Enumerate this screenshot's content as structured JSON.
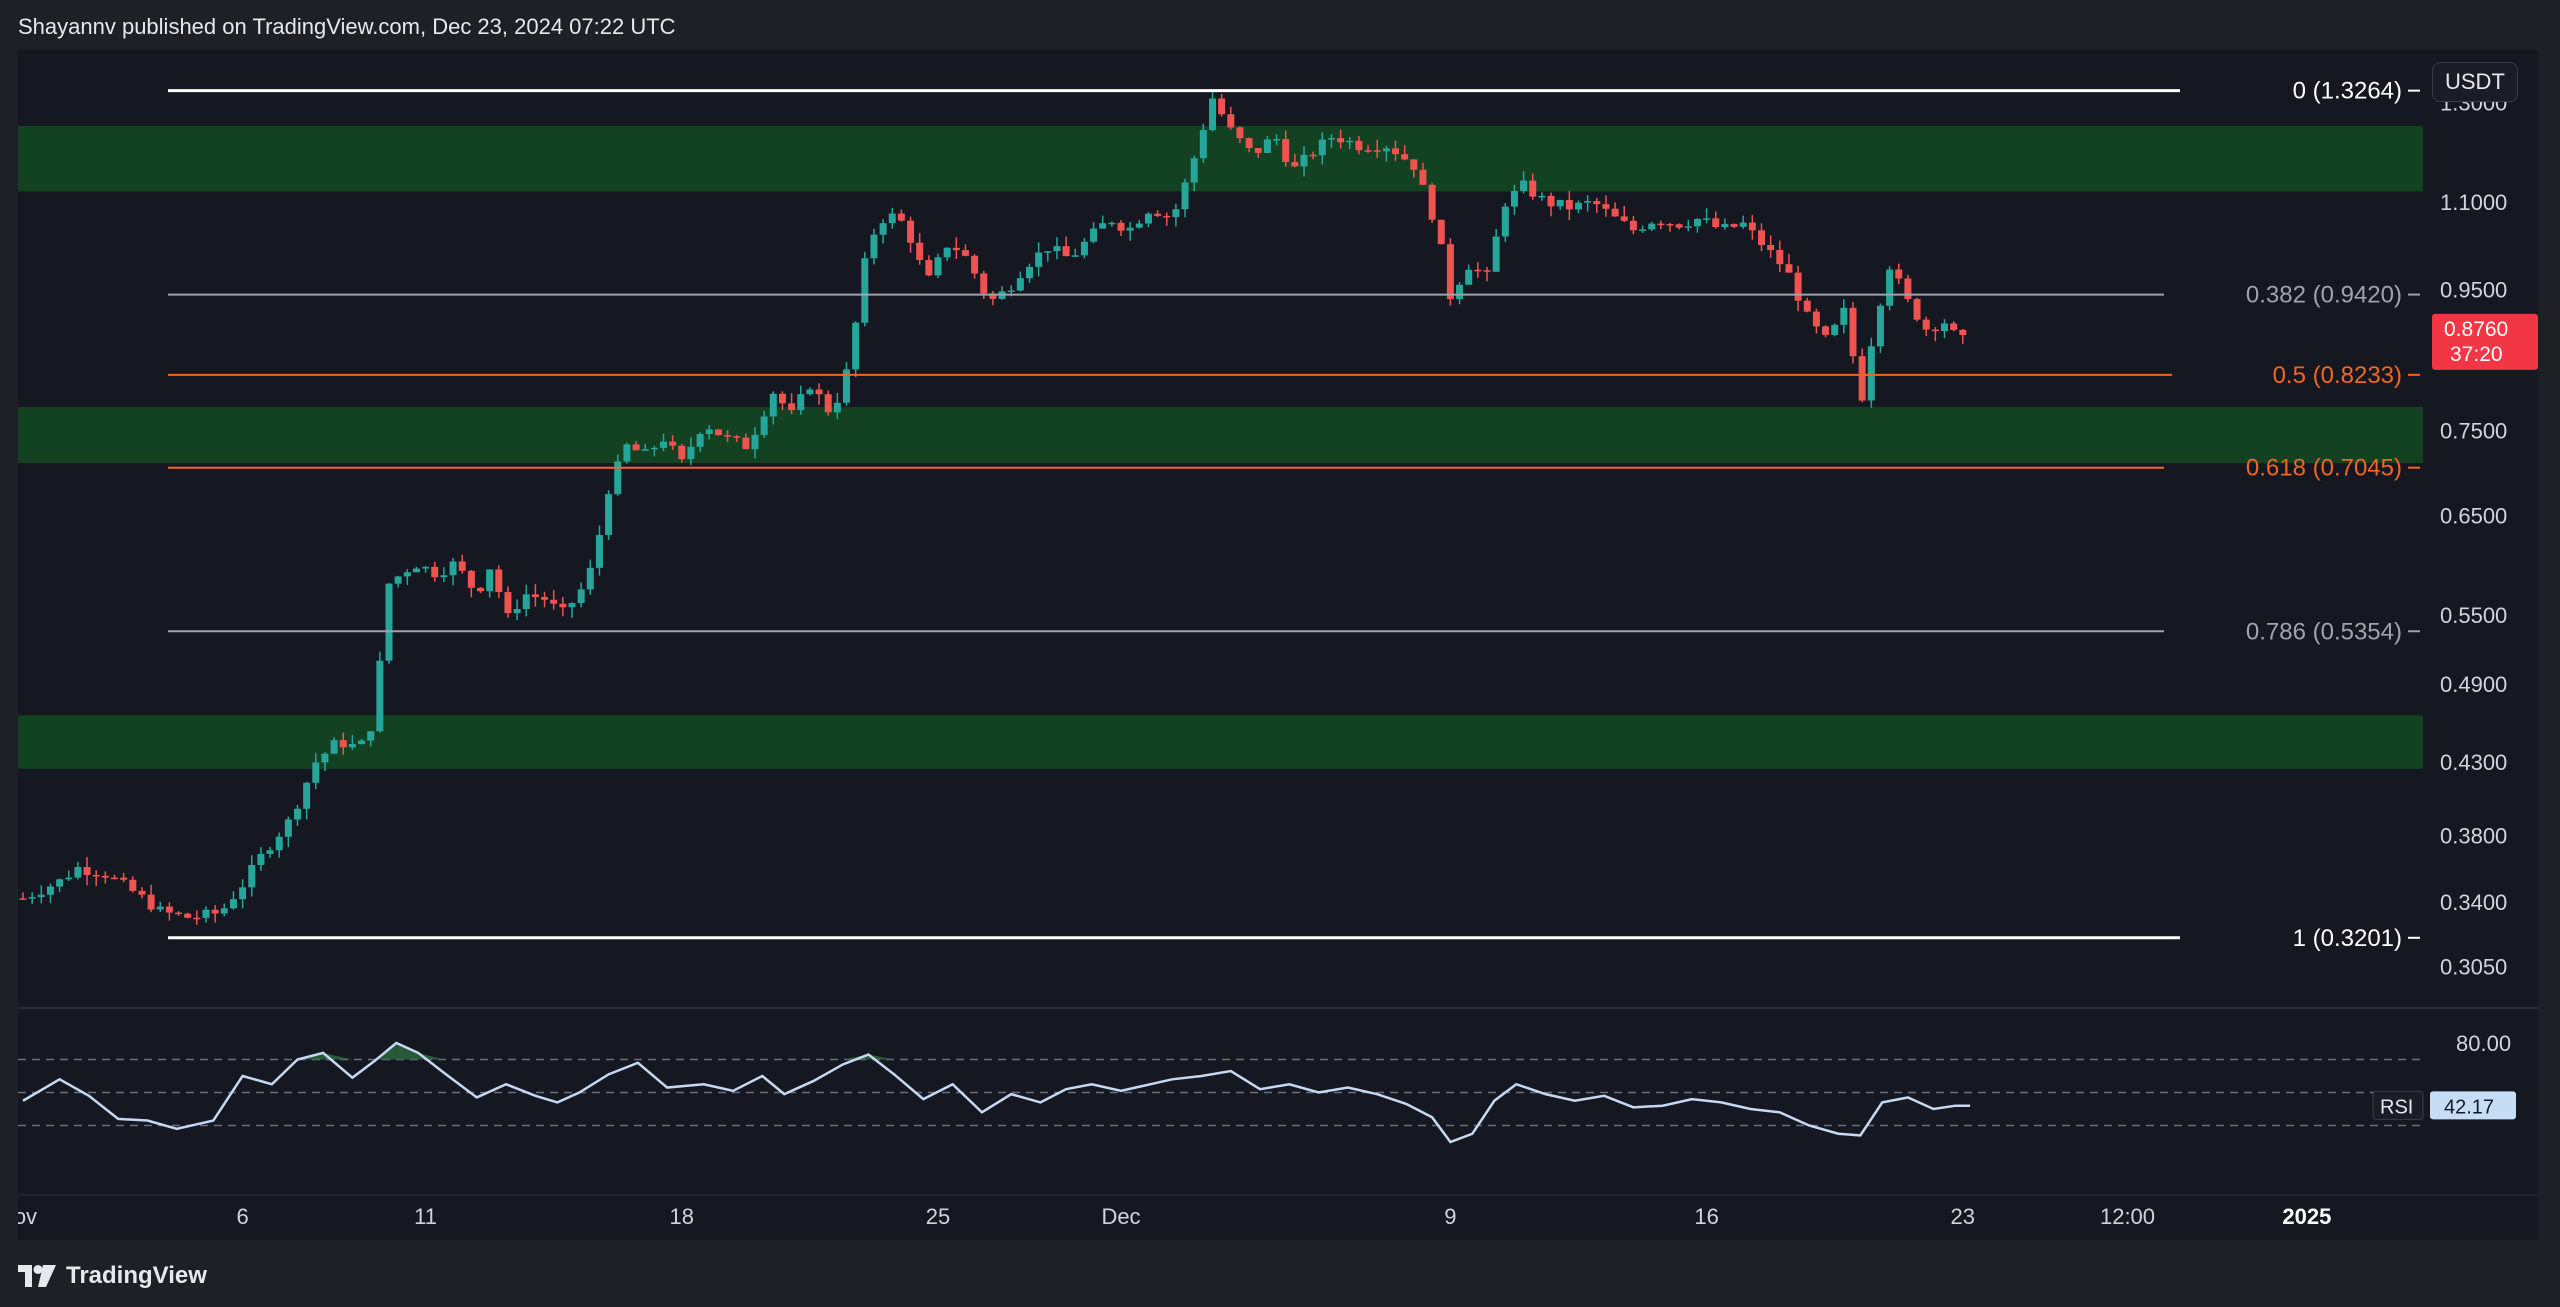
{
  "header": {
    "published_text": "Shayannv published on TradingView.com, Dec 23, 2024 07:22 UTC"
  },
  "footer": {
    "brand": "TradingView"
  },
  "colors": {
    "background": "#151821",
    "zone": "#124222",
    "candle_up": "#26a69a",
    "candle_down": "#ef5350",
    "fib_white": "#ffffff",
    "fib_gray": "#9ea3ad",
    "fib_orange": "#f26522",
    "rsi_line": "#c7d8f2",
    "price_tag": "#f23645"
  },
  "chart_data": {
    "type": "candlestick",
    "quote_unit": "USDT",
    "y_axis": {
      "scale": "log",
      "range": [
        0.285,
        1.42
      ],
      "ticks": [
        "1.3000",
        "1.1000",
        "0.9500",
        "0.7500",
        "0.6500",
        "0.5500",
        "0.4900",
        "0.4300",
        "0.3800",
        "0.3400",
        "0.3050"
      ]
    },
    "x_axis": {
      "labels": [
        {
          "text": "lov",
          "day": 0
        },
        {
          "text": "6",
          "day": 6
        },
        {
          "text": "11",
          "day": 11
        },
        {
          "text": "18",
          "day": 18
        },
        {
          "text": "25",
          "day": 25
        },
        {
          "text": "Dec",
          "day": 30
        },
        {
          "text": "9",
          "day": 39
        },
        {
          "text": "16",
          "day": 46
        },
        {
          "text": "23",
          "day": 53
        },
        {
          "text": "12:00",
          "day": 57.5
        },
        {
          "text": "2025",
          "day": 62.4
        }
      ]
    },
    "current_price": {
      "value": "0.8760",
      "countdown": "37:20"
    },
    "fib_levels": [
      {
        "label": "0 (1.3264)",
        "value": 1.3264,
        "style": "white"
      },
      {
        "label": "0.382 (0.9420)",
        "value": 0.942,
        "style": "gray"
      },
      {
        "label": "0.5 (0.8233)",
        "value": 0.8233,
        "style": "orange"
      },
      {
        "label": "0.618 (0.7045)",
        "value": 0.7045,
        "style": "orange"
      },
      {
        "label": "0.786 (0.5354)",
        "value": 0.5354,
        "style": "gray"
      },
      {
        "label": "1 (0.3201)",
        "value": 0.3201,
        "style": "white"
      }
    ],
    "zones": [
      {
        "top": 1.25,
        "bottom": 1.12
      },
      {
        "top": 0.78,
        "bottom": 0.71
      },
      {
        "top": 0.465,
        "bottom": 0.425
      }
    ],
    "price_path": [
      [
        0.0,
        0.342
      ],
      [
        1.0,
        0.352
      ],
      [
        1.5,
        0.36
      ],
      [
        2.2,
        0.357
      ],
      [
        3.0,
        0.346
      ],
      [
        3.8,
        0.334
      ],
      [
        4.6,
        0.331
      ],
      [
        5.4,
        0.334
      ],
      [
        6.0,
        0.35
      ],
      [
        6.6,
        0.37
      ],
      [
        7.3,
        0.39
      ],
      [
        8.0,
        0.43
      ],
      [
        8.6,
        0.445
      ],
      [
        9.2,
        0.44
      ],
      [
        9.6,
        0.462
      ],
      [
        10.0,
        0.58
      ],
      [
        10.7,
        0.6
      ],
      [
        11.3,
        0.59
      ],
      [
        11.8,
        0.6
      ],
      [
        12.4,
        0.57
      ],
      [
        12.8,
        0.6
      ],
      [
        13.2,
        0.545
      ],
      [
        13.7,
        0.57
      ],
      [
        14.3,
        0.565
      ],
      [
        14.7,
        0.55
      ],
      [
        15.2,
        0.57
      ],
      [
        15.6,
        0.6
      ],
      [
        16.0,
        0.68
      ],
      [
        16.5,
        0.73
      ],
      [
        17.0,
        0.72
      ],
      [
        17.5,
        0.74
      ],
      [
        18.0,
        0.71
      ],
      [
        18.6,
        0.76
      ],
      [
        19.2,
        0.74
      ],
      [
        19.8,
        0.73
      ],
      [
        20.5,
        0.8
      ],
      [
        21.0,
        0.77
      ],
      [
        21.5,
        0.81
      ],
      [
        22.1,
        0.77
      ],
      [
        22.6,
        0.84
      ],
      [
        23.1,
        1.03
      ],
      [
        23.6,
        1.08
      ],
      [
        24.1,
        1.06
      ],
      [
        24.7,
        0.96
      ],
      [
        25.3,
        1.03
      ],
      [
        25.8,
        1.0
      ],
      [
        26.4,
        0.93
      ],
      [
        26.9,
        0.95
      ],
      [
        27.4,
        0.99
      ],
      [
        28.0,
        1.02
      ],
      [
        28.6,
        1.0
      ],
      [
        29.2,
        1.04
      ],
      [
        29.7,
        1.07
      ],
      [
        30.2,
        1.05
      ],
      [
        30.8,
        1.09
      ],
      [
        31.4,
        1.07
      ],
      [
        31.9,
        1.16
      ],
      [
        32.5,
        1.31
      ],
      [
        33.0,
        1.24
      ],
      [
        33.6,
        1.19
      ],
      [
        34.2,
        1.23
      ],
      [
        34.7,
        1.16
      ],
      [
        35.3,
        1.2
      ],
      [
        35.8,
        1.23
      ],
      [
        36.5,
        1.21
      ],
      [
        37.3,
        1.21
      ],
      [
        38.0,
        1.17
      ],
      [
        38.6,
        1.06
      ],
      [
        39.0,
        0.94
      ],
      [
        39.5,
        0.99
      ],
      [
        40.0,
        0.97
      ],
      [
        40.5,
        1.1
      ],
      [
        41.0,
        1.13
      ],
      [
        41.6,
        1.1
      ],
      [
        42.3,
        1.09
      ],
      [
        42.9,
        1.1
      ],
      [
        43.5,
        1.07
      ],
      [
        44.0,
        1.05
      ],
      [
        44.6,
        1.07
      ],
      [
        45.2,
        1.06
      ],
      [
        45.8,
        1.07
      ],
      [
        46.4,
        1.05
      ],
      [
        47.0,
        1.06
      ],
      [
        47.6,
        1.02
      ],
      [
        48.2,
        0.98
      ],
      [
        48.8,
        0.9
      ],
      [
        49.3,
        0.87
      ],
      [
        49.8,
        0.92
      ],
      [
        50.2,
        0.78
      ],
      [
        50.6,
        0.9
      ],
      [
        51.0,
        0.99
      ],
      [
        51.5,
        0.93
      ],
      [
        52.0,
        0.89
      ],
      [
        52.5,
        0.9
      ],
      [
        52.9,
        0.87
      ],
      [
        53.2,
        0.876
      ]
    ],
    "rsi": {
      "label": "RSI",
      "value": "42.17",
      "levels": [
        "80.00"
      ],
      "range": [
        0,
        100
      ],
      "bands": [
        70,
        50,
        30
      ],
      "path": [
        [
          0.0,
          45
        ],
        [
          1.0,
          58
        ],
        [
          1.8,
          48
        ],
        [
          2.6,
          34
        ],
        [
          3.4,
          33
        ],
        [
          4.2,
          28
        ],
        [
          5.2,
          33
        ],
        [
          6.0,
          60
        ],
        [
          6.8,
          55
        ],
        [
          7.5,
          70
        ],
        [
          8.2,
          74
        ],
        [
          9.0,
          59
        ],
        [
          9.6,
          69
        ],
        [
          10.2,
          80
        ],
        [
          10.8,
          74
        ],
        [
          11.5,
          62
        ],
        [
          12.4,
          47
        ],
        [
          13.2,
          55
        ],
        [
          14.0,
          48
        ],
        [
          14.6,
          44
        ],
        [
          15.2,
          50
        ],
        [
          16.0,
          61
        ],
        [
          16.8,
          68
        ],
        [
          17.6,
          53
        ],
        [
          18.6,
          55
        ],
        [
          19.4,
          51
        ],
        [
          20.2,
          60
        ],
        [
          20.8,
          49
        ],
        [
          21.6,
          57
        ],
        [
          22.4,
          67
        ],
        [
          23.1,
          73
        ],
        [
          23.8,
          61
        ],
        [
          24.6,
          46
        ],
        [
          25.4,
          55
        ],
        [
          26.2,
          38
        ],
        [
          27.0,
          49
        ],
        [
          27.8,
          44
        ],
        [
          28.5,
          52
        ],
        [
          29.2,
          55
        ],
        [
          30.0,
          51
        ],
        [
          30.6,
          54
        ],
        [
          31.4,
          58
        ],
        [
          32.2,
          60
        ],
        [
          33.0,
          63
        ],
        [
          33.8,
          52
        ],
        [
          34.6,
          55
        ],
        [
          35.4,
          50
        ],
        [
          36.2,
          53
        ],
        [
          37.0,
          49
        ],
        [
          37.8,
          43
        ],
        [
          38.5,
          35
        ],
        [
          39.0,
          20
        ],
        [
          39.6,
          25
        ],
        [
          40.2,
          45
        ],
        [
          40.8,
          55
        ],
        [
          41.6,
          49
        ],
        [
          42.4,
          45
        ],
        [
          43.2,
          48
        ],
        [
          44.0,
          41
        ],
        [
          44.8,
          42
        ],
        [
          45.6,
          46
        ],
        [
          46.4,
          44
        ],
        [
          47.2,
          40
        ],
        [
          48.0,
          38
        ],
        [
          48.8,
          30
        ],
        [
          49.6,
          25
        ],
        [
          50.2,
          24
        ],
        [
          50.8,
          44
        ],
        [
          51.5,
          47
        ],
        [
          52.2,
          40
        ],
        [
          52.8,
          42
        ],
        [
          53.2,
          42
        ]
      ]
    },
    "title": "",
    "xlabel": "",
    "ylabel": ""
  }
}
